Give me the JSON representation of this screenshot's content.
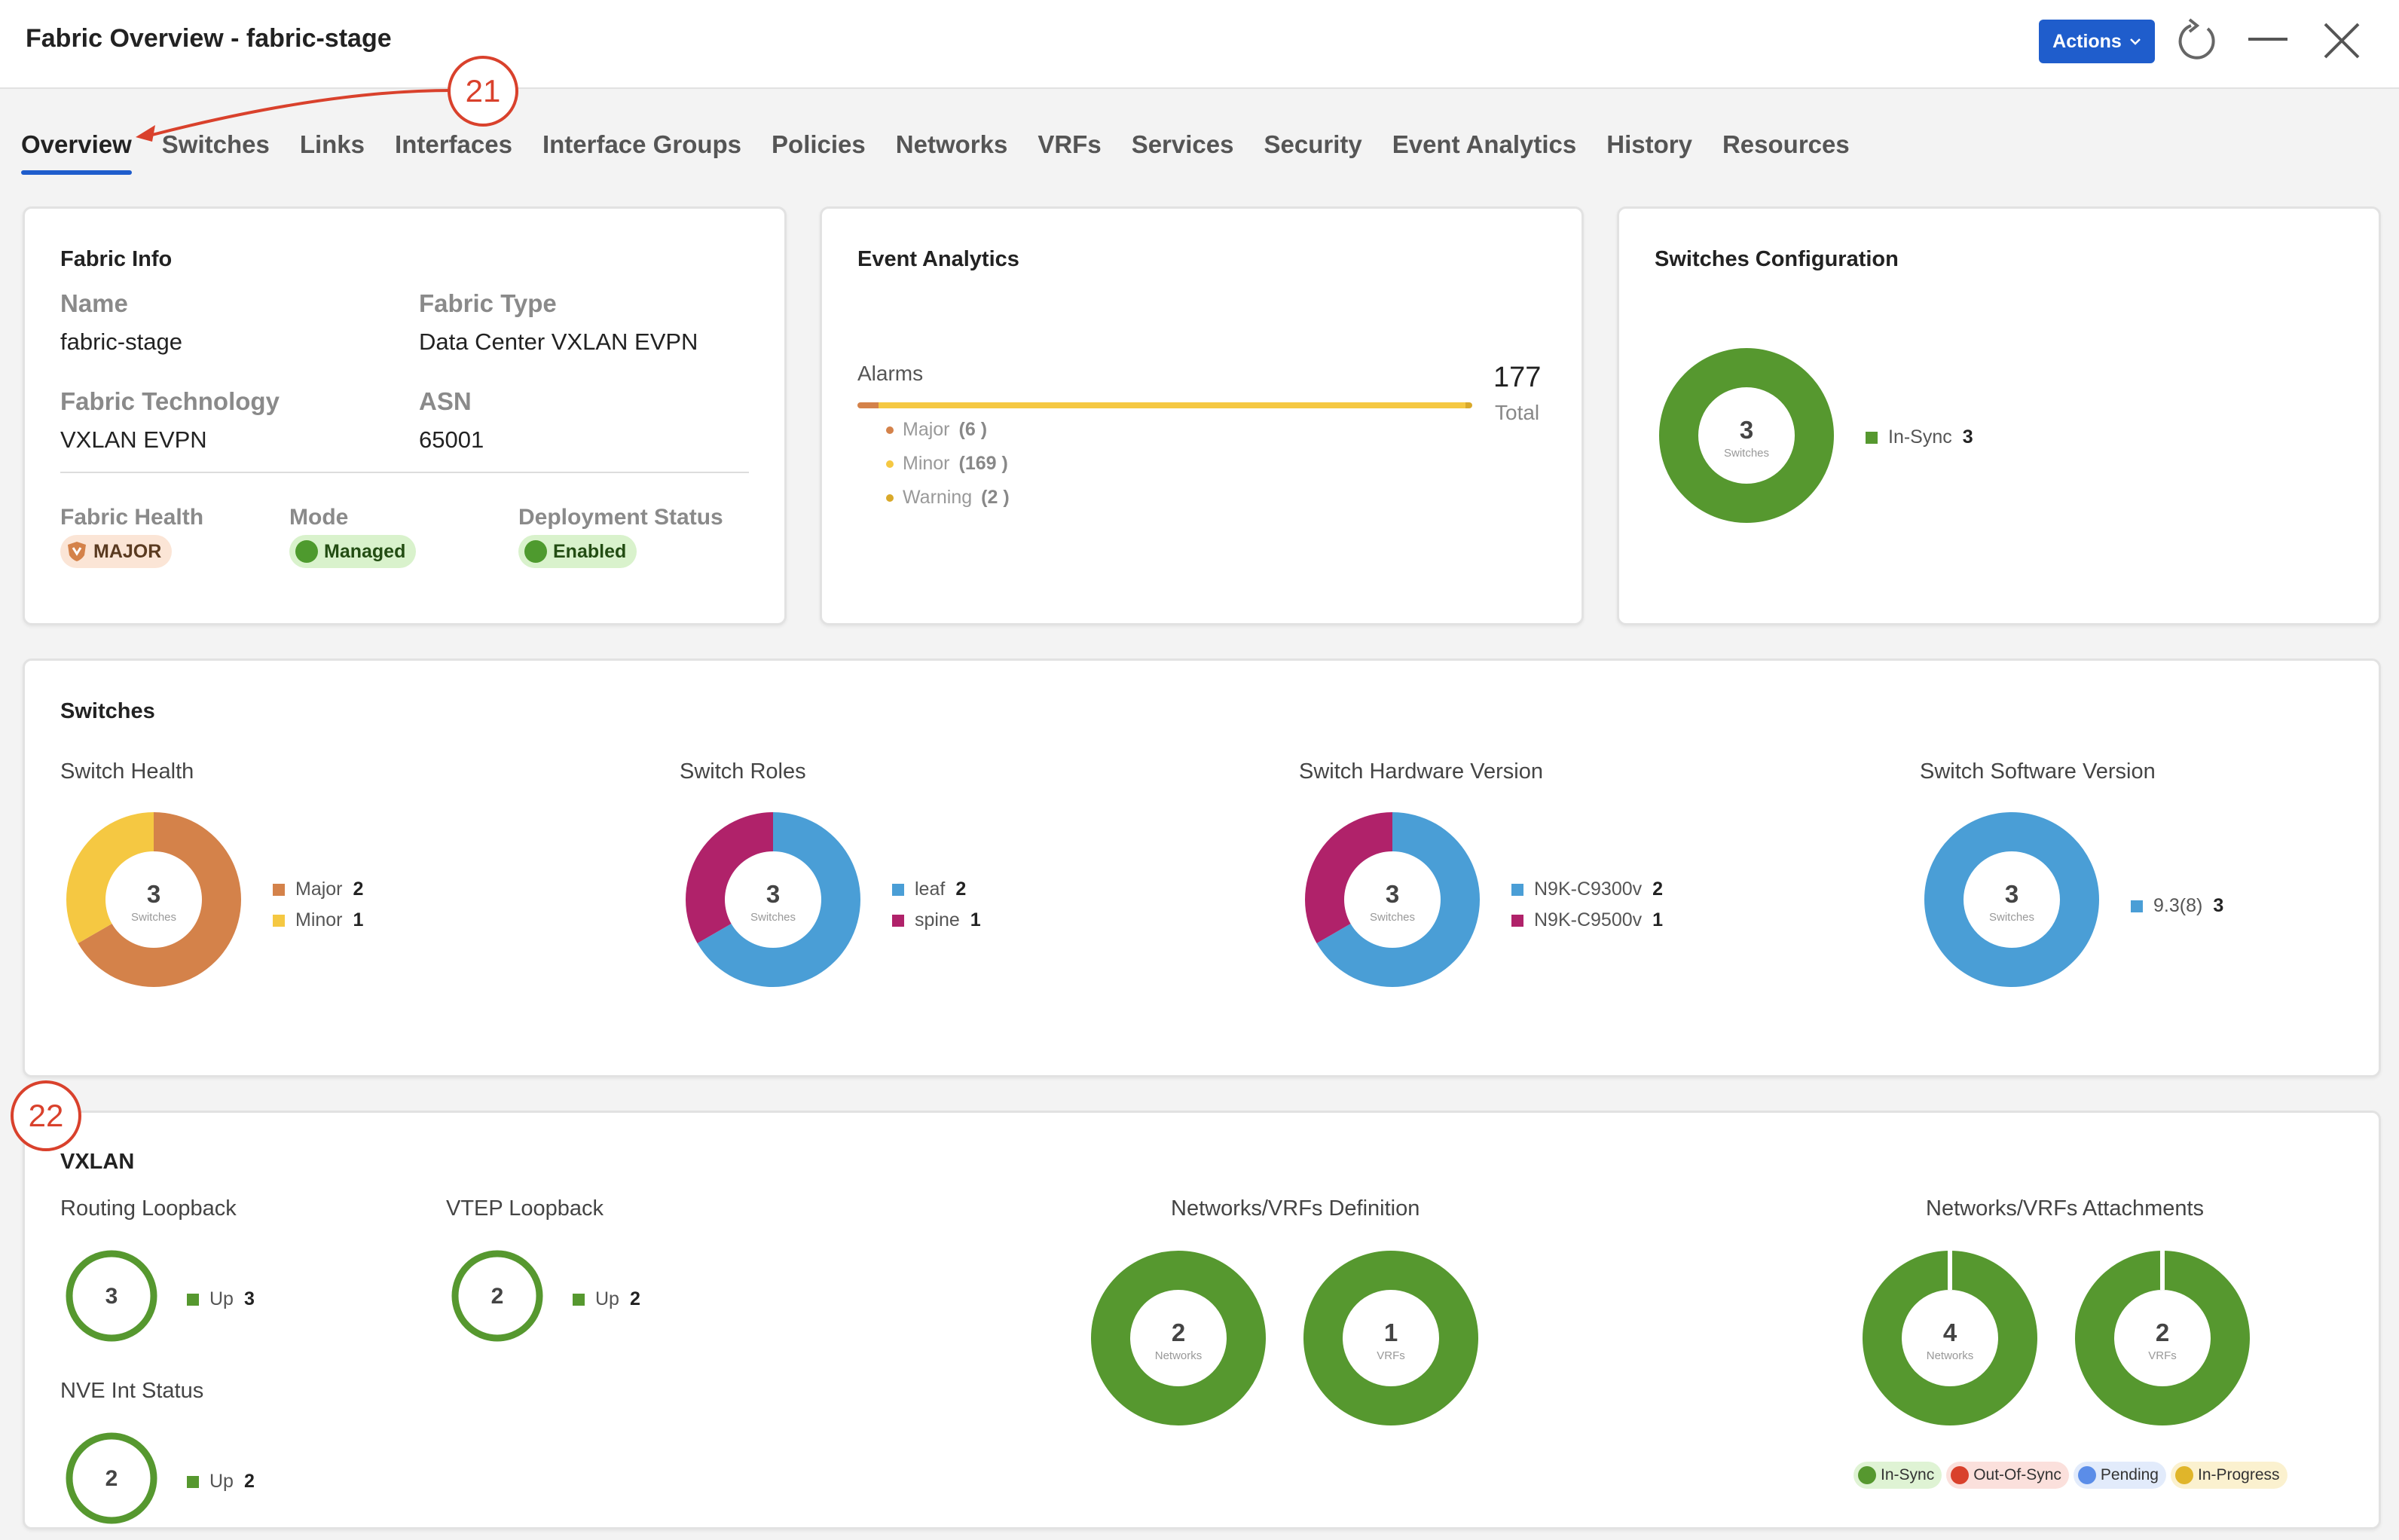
{
  "window": {
    "title": "Fabric Overview - fabric-stage",
    "actions_label": "Actions"
  },
  "tabs": [
    "Overview",
    "Switches",
    "Links",
    "Interfaces",
    "Interface Groups",
    "Policies",
    "Networks",
    "VRFs",
    "Services",
    "Security",
    "Event Analytics",
    "History",
    "Resources"
  ],
  "callouts": {
    "c21": "21",
    "c22": "22"
  },
  "fabric_info": {
    "title": "Fabric Info",
    "name_label": "Name",
    "name_value": "fabric-stage",
    "type_label": "Fabric Type",
    "type_value": "Data Center VXLAN EVPN",
    "tech_label": "Fabric Technology",
    "tech_value": "VXLAN EVPN",
    "asn_label": "ASN",
    "asn_value": "65001",
    "health_label": "Fabric Health",
    "health_value": "MAJOR",
    "mode_label": "Mode",
    "mode_value": "Managed",
    "deploy_label": "Deployment Status",
    "deploy_value": "Enabled"
  },
  "event_analytics": {
    "title": "Event Analytics",
    "alarms_label": "Alarms",
    "total_value": "177",
    "total_label": "Total",
    "items": [
      {
        "label": "Major",
        "count": "(6 )",
        "color": "#d4824a"
      },
      {
        "label": "Minor",
        "count": "(169 )",
        "color": "#f5c842"
      },
      {
        "label": "Warning",
        "count": "(2 )",
        "color": "#d9a92a"
      }
    ],
    "bar": {
      "major": 6,
      "minor": 169,
      "warning": 2
    }
  },
  "switches_config": {
    "title": "Switches Configuration",
    "center_num": "3",
    "center_sub": "Switches",
    "legend": [
      {
        "label": "In-Sync",
        "count": "3",
        "color": "#56982f"
      }
    ]
  },
  "switches": {
    "title": "Switches",
    "health": {
      "title": "Switch Health",
      "center_num": "3",
      "center_sub": "Switches",
      "legend": [
        {
          "label": "Major",
          "count": "2",
          "color": "#d4824a"
        },
        {
          "label": "Minor",
          "count": "1",
          "color": "#f5c842"
        }
      ]
    },
    "roles": {
      "title": "Switch Roles",
      "center_num": "3",
      "center_sub": "Switches",
      "legend": [
        {
          "label": "leaf",
          "count": "2",
          "color": "#4a9ed6"
        },
        {
          "label": "spine",
          "count": "1",
          "color": "#b0226a"
        }
      ]
    },
    "hardware": {
      "title": "Switch Hardware Version",
      "center_num": "3",
      "center_sub": "Switches",
      "legend": [
        {
          "label": "N9K-C9300v",
          "count": "2",
          "color": "#4a9ed6"
        },
        {
          "label": "N9K-C9500v",
          "count": "1",
          "color": "#b0226a"
        }
      ]
    },
    "software": {
      "title": "Switch Software Version",
      "center_num": "3",
      "center_sub": "Switches",
      "legend": [
        {
          "label": "9.3(8)",
          "count": "3",
          "color": "#4a9ed6"
        }
      ]
    }
  },
  "vxlan": {
    "title": "VXLAN",
    "routing": {
      "title": "Routing Loopback",
      "num": "3",
      "legend_label": "Up",
      "legend_count": "3"
    },
    "vtep": {
      "title": "VTEP Loopback",
      "num": "2",
      "legend_label": "Up",
      "legend_count": "2"
    },
    "nve": {
      "title": "NVE Int Status",
      "num": "2",
      "legend_label": "Up",
      "legend_count": "2"
    },
    "definition": {
      "title": "Networks/VRFs Definition",
      "networks": {
        "num": "2",
        "sub": "Networks"
      },
      "vrfs": {
        "num": "1",
        "sub": "VRFs"
      }
    },
    "attachments": {
      "title": "Networks/VRFs Attachments",
      "networks": {
        "num": "4",
        "sub": "Networks"
      },
      "vrfs": {
        "num": "2",
        "sub": "VRFs"
      },
      "statuses": [
        {
          "label": "In-Sync",
          "color": "#56982f",
          "bg": "#dff3d4"
        },
        {
          "label": "Out-Of-Sync",
          "color": "#d9412c",
          "bg": "#fbe0dc"
        },
        {
          "label": "Pending",
          "color": "#5b8de8",
          "bg": "#e2ebfb"
        },
        {
          "label": "In-Progress",
          "color": "#e0b52a",
          "bg": "#fbf1cf"
        }
      ]
    }
  },
  "colors": {
    "green": "#56982f",
    "major": "#d4824a",
    "minor": "#f5c842",
    "blue": "#4a9ed6",
    "magenta": "#b0226a",
    "accent": "#1f5dcc"
  }
}
